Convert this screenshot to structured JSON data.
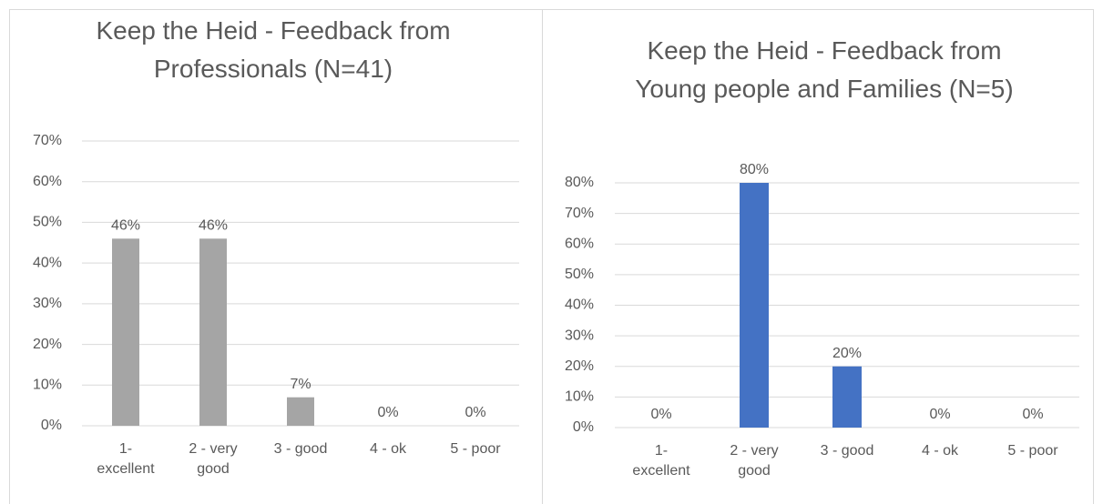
{
  "chart_data": [
    {
      "type": "bar",
      "title": "Keep the Heid - Feedback from Professionals (N=41)",
      "categories": [
        "1- excellent",
        "2 - very good",
        "3 - good",
        "4 - ok",
        "5 - poor"
      ],
      "values": [
        46,
        46,
        7,
        0,
        0
      ],
      "value_labels": [
        "46%",
        "46%",
        "7%",
        "0%",
        "0%"
      ],
      "color": "#a5a5a5",
      "grid": true,
      "ylim": [
        0,
        70
      ],
      "yticks": [
        {
          "value": 0,
          "label": "0%"
        },
        {
          "value": 10,
          "label": "10%"
        },
        {
          "value": 20,
          "label": "20%"
        },
        {
          "value": 30,
          "label": "30%"
        },
        {
          "value": 40,
          "label": "40%"
        },
        {
          "value": 50,
          "label": "50%"
        },
        {
          "value": 60,
          "label": "60%"
        },
        {
          "value": 70,
          "label": "70%"
        }
      ]
    },
    {
      "type": "bar",
      "title": "Keep the Heid - Feedback from Young people and Families (N=5)",
      "categories": [
        "1- excellent",
        "2 - very good",
        "3 - good",
        "4 - ok",
        "5 - poor"
      ],
      "values": [
        0,
        80,
        20,
        0,
        0
      ],
      "value_labels": [
        "0%",
        "80%",
        "20%",
        "0%",
        "0%"
      ],
      "color": "#4472c4",
      "grid": true,
      "ylim": [
        0,
        80
      ],
      "yticks": [
        {
          "value": 0,
          "label": "0%"
        },
        {
          "value": 10,
          "label": "10%"
        },
        {
          "value": 20,
          "label": "20%"
        },
        {
          "value": 30,
          "label": "30%"
        },
        {
          "value": 40,
          "label": "40%"
        },
        {
          "value": 50,
          "label": "50%"
        },
        {
          "value": 60,
          "label": "60%"
        },
        {
          "value": 70,
          "label": "70%"
        },
        {
          "value": 80,
          "label": "80%"
        }
      ]
    }
  ]
}
